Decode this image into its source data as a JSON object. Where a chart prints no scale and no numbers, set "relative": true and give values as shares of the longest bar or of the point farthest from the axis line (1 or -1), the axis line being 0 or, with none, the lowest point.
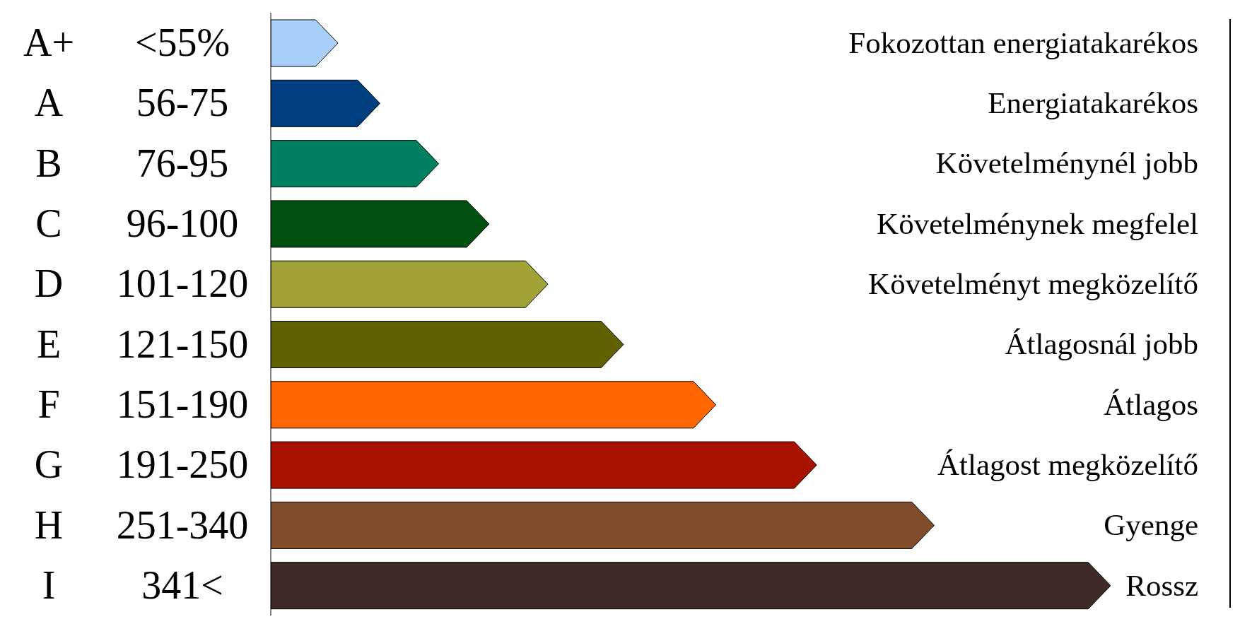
{
  "chart_data": {
    "type": "bar",
    "orientation": "horizontal",
    "relative": true,
    "categories": [
      "A+",
      "A",
      "B",
      "C",
      "D",
      "E",
      "F",
      "G",
      "H",
      "I"
    ],
    "values": [
      0.08,
      0.13,
      0.2,
      0.26,
      0.33,
      0.42,
      0.53,
      0.65,
      0.79,
      1
    ],
    "colors": [
      "#a9cffb",
      "#003e80",
      "#008060",
      "#00500f",
      "#a2a336",
      "#5f6000",
      "#ff6600",
      "#a81000",
      "#804c2c",
      "#3f2a28"
    ],
    "y2_categories": [
      "Fokozottan energiatakarékos",
      "Energiatakarékos",
      "Követelménynél jobb",
      "Követelménynek megfelel",
      "Követelményt megközelítő",
      "Átlagosnál jobb",
      "Átlagos",
      "Átlagost megközelítő",
      "Gyenge",
      "Rossz"
    ],
    "annotations": [
      "<55%",
      "56-75",
      "76-95",
      "96-100",
      "101-120",
      "121-150",
      "151-190",
      "191-250",
      "251-340",
      "341<"
    ]
  }
}
